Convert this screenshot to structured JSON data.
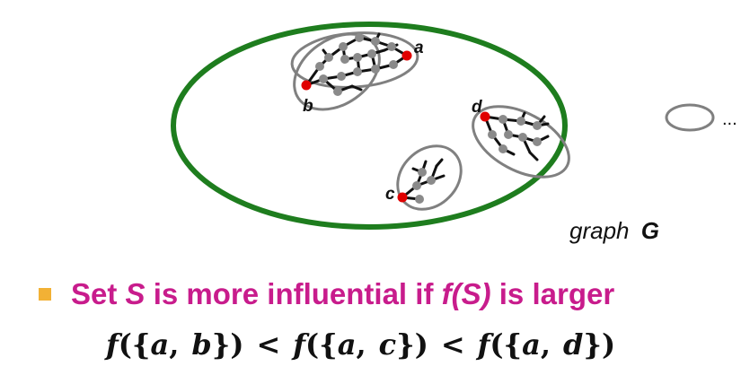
{
  "diagram": {
    "node_labels": {
      "a": "a",
      "b": "b",
      "c": "c",
      "d": "d"
    },
    "ellipsis": "...",
    "caption": {
      "word": "graph",
      "symbol": "G"
    },
    "colors": {
      "graph_outline": "#1e7d1e",
      "cascade_outline": "#808080",
      "seed_node": "#e00000",
      "node": "#8a8a8a",
      "edge": "#111111"
    }
  },
  "bullet": {
    "parts": [
      "Set ",
      "S",
      " is more influential if ",
      "f(S)",
      " is larger"
    ]
  },
  "formula": {
    "f": "f",
    "open": "({",
    "close": "})",
    "lt": "<",
    "comma": ",",
    "sets": [
      [
        "a",
        "b"
      ],
      [
        "a",
        "c"
      ],
      [
        "a",
        "d"
      ]
    ]
  }
}
